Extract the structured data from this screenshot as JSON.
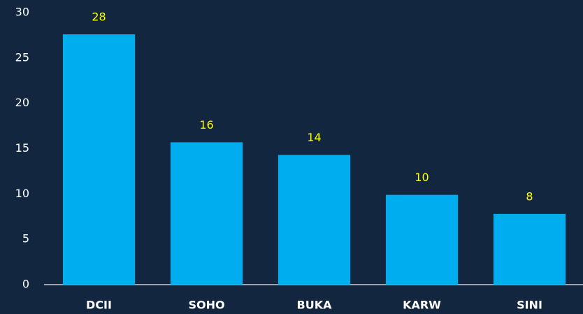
{
  "chart_data": {
    "type": "bar",
    "categories": [
      "DCII",
      "SOHO",
      "BUKA",
      "KARW",
      "SINI"
    ],
    "values": [
      27.6,
      15.7,
      14.3,
      9.9,
      7.8
    ],
    "value_labels": [
      "28",
      "16",
      "14",
      "10",
      "8"
    ],
    "color": "#00adef",
    "ylim": [
      0,
      30
    ],
    "yticks": [
      0,
      5,
      10,
      15,
      20,
      25,
      30
    ],
    "grid": false
  }
}
